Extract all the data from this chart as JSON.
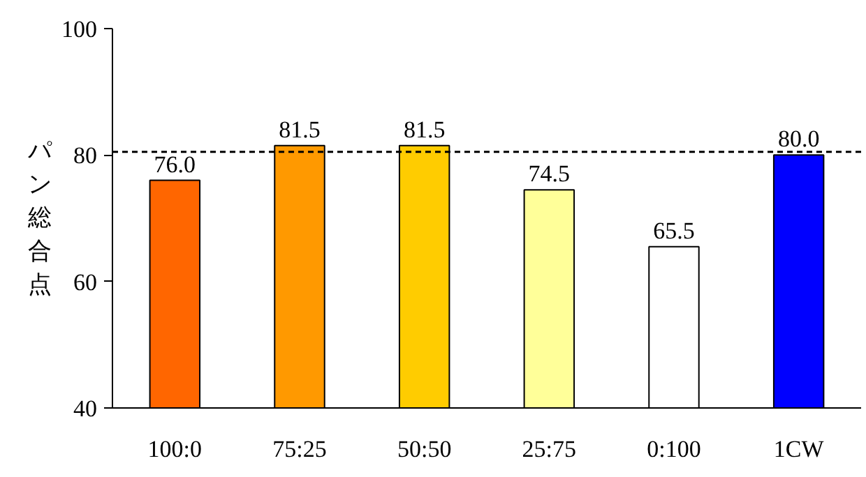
{
  "chart_data": {
    "type": "bar",
    "ylabel": "パン総合点",
    "categories": [
      "100:0",
      "75:25",
      "50:50",
      "25:75",
      "0:100",
      "1CW"
    ],
    "values": [
      76.0,
      81.5,
      81.5,
      74.5,
      65.5,
      80.0
    ],
    "value_labels": [
      "76.0",
      "81.5",
      "81.5",
      "74.5",
      "65.5",
      "80.0"
    ],
    "colors": [
      "#ff6600",
      "#ff9900",
      "#ffcc00",
      "#ffff99",
      "#ffffff",
      "#0000ff"
    ],
    "ylim": [
      40,
      100
    ],
    "yticks": [
      40,
      60,
      80,
      100
    ],
    "grid": false,
    "ref_lines": [
      {
        "axis": "y",
        "value": 80.5,
        "line_style": "dashed",
        "color": "#000000"
      }
    ]
  }
}
